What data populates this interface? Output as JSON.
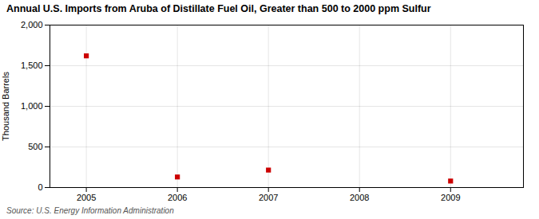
{
  "chart_data": {
    "type": "scatter",
    "title": "Annual U.S. Imports from Aruba of Distillate Fuel Oil, Greater than 500 to 2000 ppm Sulfur",
    "ylabel": "Thousand Barrels",
    "annotations": [
      "Source: U.S. Energy Information Administration"
    ],
    "x": [
      2005,
      2006,
      2007,
      2009
    ],
    "values": [
      1621,
      130,
      215,
      80
    ],
    "color": "#cc0000",
    "marker": "square",
    "xlim": [
      2004.6,
      2009.8
    ],
    "xticks": [
      2005,
      2006,
      2007,
      2008,
      2009
    ],
    "ylim": [
      0,
      2000
    ],
    "yticks": [
      0,
      500,
      {
        "value": 1000,
        "label": "1,000"
      },
      {
        "value": 1500,
        "label": "1,500"
      },
      {
        "value": 2000,
        "label": "2,000"
      }
    ],
    "grid": true
  }
}
